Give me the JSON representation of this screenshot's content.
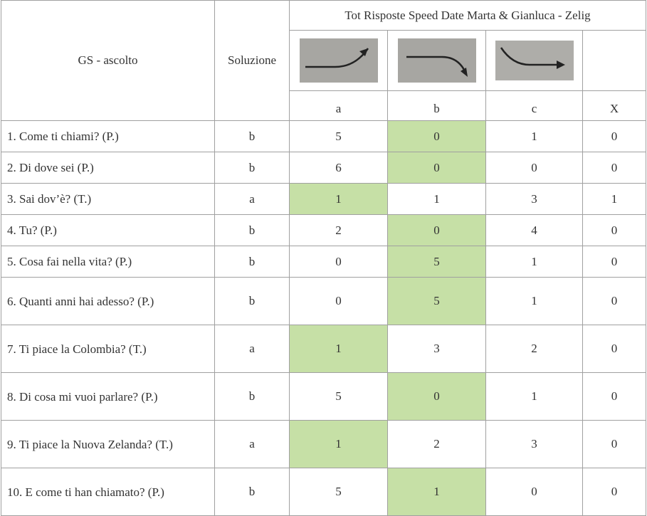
{
  "header": {
    "question": "GS - ascolto",
    "solution": "Soluzione",
    "group": "Tot Risposte Speed Date Marta & Gianluca - Zelig",
    "options": [
      "a",
      "b",
      "c",
      "X"
    ]
  },
  "rows": [
    {
      "question": "1. Come ti chiami? (P.)",
      "solution": "b",
      "counts": [
        "5",
        "0",
        "1",
        "0"
      ]
    },
    {
      "question": "2. Di dove sei (P.)",
      "solution": "b",
      "counts": [
        "6",
        "0",
        "0",
        "0"
      ]
    },
    {
      "question": "3. Sai dov’è? (T.)",
      "solution": "a",
      "counts": [
        "1",
        "1",
        "3",
        "1"
      ]
    },
    {
      "question": "4. Tu? (P.)",
      "solution": "b",
      "counts": [
        "2",
        "0",
        "4",
        "0"
      ]
    },
    {
      "question": "5. Cosa fai nella vita? (P.)",
      "solution": "b",
      "counts": [
        "0",
        "5",
        "1",
        "0"
      ]
    },
    {
      "question": "6. Quanti anni hai adesso? (P.)",
      "solution": "b",
      "counts": [
        "0",
        "5",
        "1",
        "0"
      ]
    },
    {
      "question": "7. Ti piace la Colombia? (T.)",
      "solution": "a",
      "counts": [
        "1",
        "3",
        "2",
        "0"
      ]
    },
    {
      "question": "8. Di cosa mi vuoi parlare? (P.)",
      "solution": "b",
      "counts": [
        "5",
        "0",
        "1",
        "0"
      ]
    },
    {
      "question": "9. Ti piace la Nuova Zelanda? (T.)",
      "solution": "a",
      "counts": [
        "1",
        "2",
        "3",
        "0"
      ]
    },
    {
      "question": "10. E come ti han chiamato? (P.)",
      "solution": "b",
      "counts": [
        "5",
        "1",
        "0",
        "0"
      ]
    }
  ]
}
